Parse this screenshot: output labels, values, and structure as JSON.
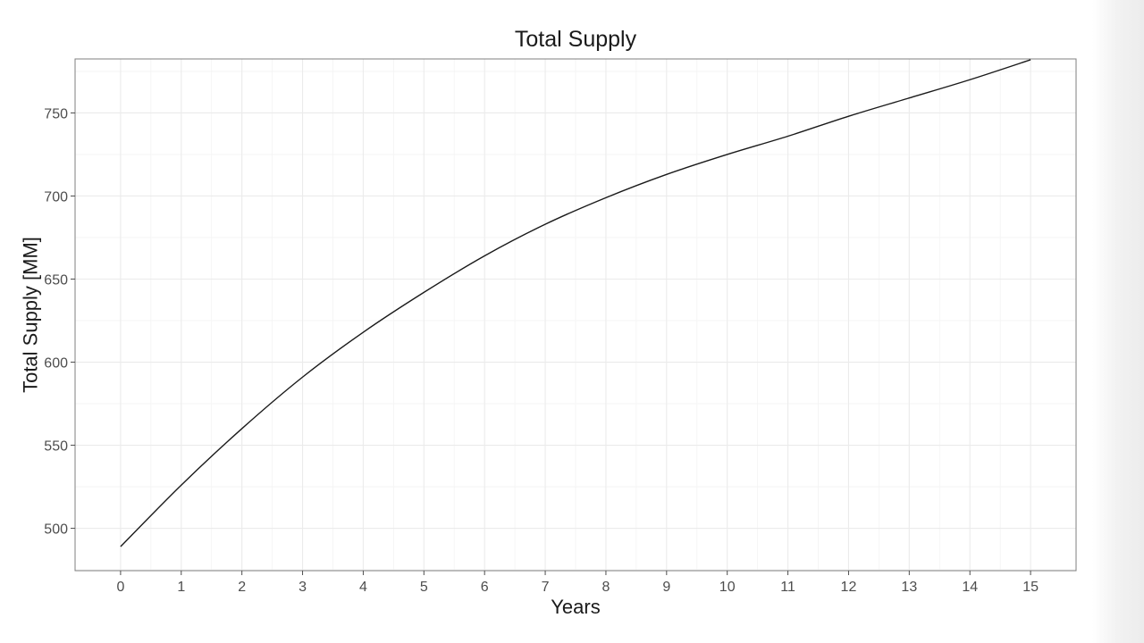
{
  "chart_data": {
    "type": "line",
    "title": "Total Supply",
    "xlabel": "Years",
    "ylabel": "Total Supply [MM]",
    "xlim": [
      -0.75,
      15.75
    ],
    "ylim": [
      474.5,
      782.5
    ],
    "x_ticks": [
      0,
      1,
      2,
      3,
      4,
      5,
      6,
      7,
      8,
      9,
      10,
      11,
      12,
      13,
      14,
      15
    ],
    "y_ticks": [
      500,
      550,
      600,
      650,
      700,
      750
    ],
    "grid": true,
    "legend": "none",
    "line_color": "#1a1a1a",
    "series": [
      {
        "x": [
          0,
          1,
          2,
          3,
          4,
          5,
          6,
          7,
          8,
          9,
          10,
          11,
          12,
          13,
          14,
          15
        ],
        "y": [
          489,
          526,
          560,
          591,
          618,
          642,
          664,
          683,
          699,
          713,
          725,
          736,
          748,
          759,
          770,
          782
        ]
      }
    ]
  }
}
